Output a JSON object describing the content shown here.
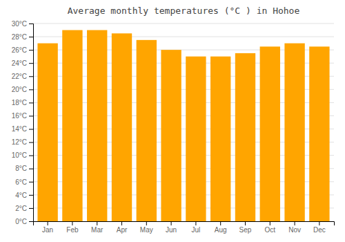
{
  "chart_data": {
    "type": "bar",
    "title": "Average monthly temperatures (°C ) in Hohoe",
    "categories": [
      "Jan",
      "Feb",
      "Mar",
      "Apr",
      "May",
      "Jun",
      "Jul",
      "Aug",
      "Sep",
      "Oct",
      "Nov",
      "Dec"
    ],
    "values": [
      27,
      29,
      29,
      28.5,
      27.5,
      26,
      25,
      25,
      25.5,
      26.5,
      27,
      26.5
    ],
    "color": "#FFA500",
    "ylim": [
      0,
      30
    ],
    "yticks": [
      {
        "value": 0,
        "label": "0°C"
      },
      {
        "value": 2,
        "label": "2°C"
      },
      {
        "value": 4,
        "label": "4°C"
      },
      {
        "value": 6,
        "label": "6°C"
      },
      {
        "value": 8,
        "label": "8°C"
      },
      {
        "value": 10,
        "label": "10°C"
      },
      {
        "value": 12,
        "label": "12°C"
      },
      {
        "value": 14,
        "label": "14°C"
      },
      {
        "value": 16,
        "label": "16°C"
      },
      {
        "value": 18,
        "label": "18°C"
      },
      {
        "value": 20,
        "label": "20°C"
      },
      {
        "value": 22,
        "label": "22°C"
      },
      {
        "value": 24,
        "label": "24°C"
      },
      {
        "value": 26,
        "label": "26°C"
      },
      {
        "value": 28,
        "label": "28°C"
      },
      {
        "value": 30,
        "label": "30°C"
      }
    ],
    "grid": true
  }
}
